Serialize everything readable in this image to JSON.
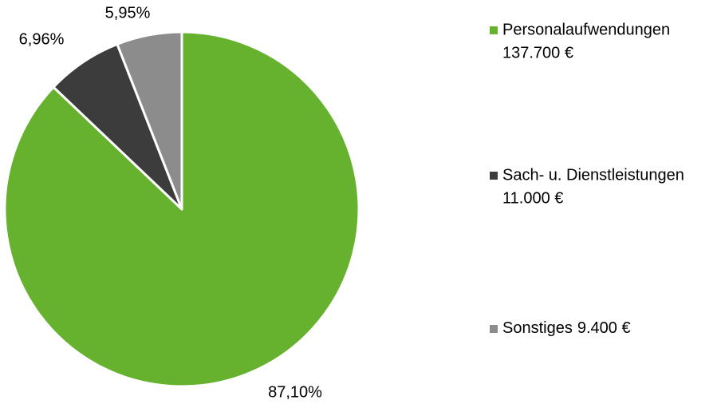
{
  "chart_data": {
    "type": "pie",
    "categories": [
      "Personalaufwendungen",
      "Sach- u. Dienstleistungen",
      "Sonstiges"
    ],
    "amounts": [
      "137.700 €",
      "11.000 €",
      "9.400 €"
    ],
    "values": [
      87.1,
      6.96,
      5.95
    ],
    "value_labels": [
      "87,10%",
      "6,96%",
      "5,95%"
    ],
    "colors": [
      "#66b22f",
      "#3c3c3c",
      "#8c8c8c"
    ],
    "legend": "right"
  }
}
